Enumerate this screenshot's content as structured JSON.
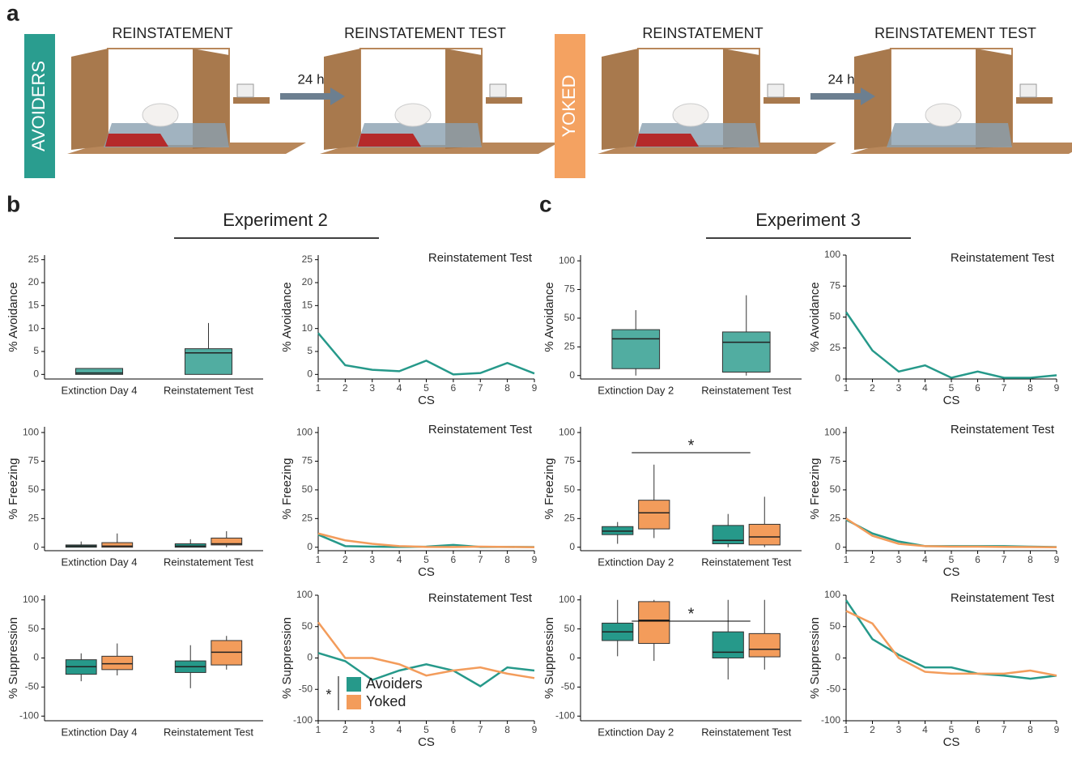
{
  "panel_labels": [
    "a",
    "b",
    "c"
  ],
  "panel_a": {
    "groups": [
      {
        "label": "AVOIDERS",
        "steps": [
          "REINSTATEMENT",
          "REINSTATEMENT TEST"
        ],
        "delay": "24 h"
      },
      {
        "label": "YOKED",
        "steps": [
          "REINSTATEMENT",
          "REINSTATEMENT TEST"
        ],
        "delay": "24 h"
      }
    ]
  },
  "experiments": [
    "Experiment 2",
    "Experiment 3"
  ],
  "chart_data": [
    {
      "type": "box",
      "ylabel": "% Avoidance",
      "categories": [
        "Extinction Day 4",
        "Reinstatement Test"
      ],
      "ylim": [
        -1,
        26
      ],
      "yticks": [
        0,
        5,
        10,
        15,
        20,
        25
      ],
      "series": [
        {
          "color": "#26998a",
          "boxes": [
            {
              "min": 0,
              "q1": 0,
              "median": 0.3,
              "q3": 1.3,
              "max": 1.3
            },
            {
              "min": 0,
              "q1": 0,
              "median": 4.7,
              "q3": 5.6,
              "max": 11.2
            }
          ]
        }
      ]
    },
    {
      "type": "line",
      "title": "Reinstatement Test",
      "xlabel": "CS",
      "ylabel": "% Avoidance",
      "x": [
        1,
        2,
        3,
        4,
        5,
        6,
        7,
        8,
        9
      ],
      "xlim": [
        1,
        9
      ],
      "xticks": [
        1,
        2,
        3,
        4,
        5,
        6,
        7,
        8,
        9
      ],
      "ylim": [
        -1,
        26
      ],
      "yticks": [
        0,
        5,
        10,
        15,
        20,
        25
      ],
      "series": [
        {
          "color": "#26998a",
          "values": [
            9,
            2,
            1,
            0.7,
            3,
            0,
            0.3,
            2.5,
            0.2
          ]
        }
      ]
    },
    {
      "type": "box",
      "ylabel": "% Avoidance",
      "categories": [
        "Extinction Day 2",
        "Reinstatement Test"
      ],
      "ylim": [
        -3,
        105
      ],
      "yticks": [
        0,
        25,
        50,
        75,
        100
      ],
      "series": [
        {
          "color": "#26998a",
          "boxes": [
            {
              "min": 0,
              "q1": 6,
              "median": 32,
              "q3": 40,
              "max": 57
            },
            {
              "min": 0,
              "q1": 3,
              "median": 29,
              "q3": 38,
              "max": 70
            }
          ]
        }
      ]
    },
    {
      "type": "line",
      "title": "Reinstatement Test",
      "xlabel": "CS",
      "ylabel": "% Avoidance",
      "x": [
        1,
        2,
        3,
        4,
        5,
        6,
        7,
        8,
        9
      ],
      "xlim": [
        1,
        9
      ],
      "xticks": [
        1,
        2,
        3,
        4,
        5,
        6,
        7,
        8,
        9
      ],
      "ylim": [
        0,
        100
      ],
      "yticks": [
        0,
        25,
        50,
        75,
        100
      ],
      "series": [
        {
          "color": "#26998a",
          "values": [
            54,
            23,
            6,
            11,
            1,
            6,
            1,
            1,
            3
          ]
        }
      ]
    },
    {
      "type": "box",
      "ylabel": "% Freezing",
      "categories": [
        "Extinction Day 4",
        "Reinstatement Test"
      ],
      "ylim": [
        -3,
        105
      ],
      "yticks": [
        0,
        25,
        50,
        75,
        100
      ],
      "series": [
        {
          "color": "#26998a",
          "boxes": [
            {
              "min": 0,
              "q1": 0,
              "median": 1,
              "q3": 2,
              "max": 5
            },
            {
              "min": 0,
              "q1": 0,
              "median": 1,
              "q3": 3,
              "max": 7
            }
          ]
        },
        {
          "color": "#f39c5b",
          "boxes": [
            {
              "min": 0,
              "q1": 0,
              "median": 1,
              "q3": 4,
              "max": 12
            },
            {
              "min": 0,
              "q1": 2,
              "median": 3,
              "q3": 8,
              "max": 14
            }
          ]
        }
      ]
    },
    {
      "type": "line",
      "title": "Reinstatement Test",
      "xlabel": "CS",
      "ylabel": "% Freezing",
      "x": [
        1,
        2,
        3,
        4,
        5,
        6,
        7,
        8,
        9
      ],
      "xlim": [
        1,
        9
      ],
      "xticks": [
        1,
        2,
        3,
        4,
        5,
        6,
        7,
        8,
        9
      ],
      "ylim": [
        -3,
        105
      ],
      "yticks": [
        0,
        25,
        50,
        75,
        100
      ],
      "series": [
        {
          "color": "#26998a",
          "values": [
            11,
            1,
            0.5,
            0.3,
            0.5,
            2,
            0.3,
            0.3,
            0.2
          ]
        },
        {
          "color": "#f39c5b",
          "values": [
            12,
            6,
            3,
            1,
            0.3,
            0.2,
            0.5,
            0.3,
            0
          ]
        }
      ]
    },
    {
      "type": "box",
      "ylabel": "% Freezing",
      "categories": [
        "Extinction Day 2",
        "Reinstatement Test"
      ],
      "ylim": [
        -3,
        105
      ],
      "yticks": [
        0,
        25,
        50,
        75,
        100
      ],
      "annotation": "*",
      "series": [
        {
          "color": "#26998a",
          "boxes": [
            {
              "min": 3,
              "q1": 11,
              "median": 14,
              "q3": 18,
              "max": 22
            },
            {
              "min": 0,
              "q1": 3,
              "median": 6,
              "q3": 19,
              "max": 29
            }
          ]
        },
        {
          "color": "#f39c5b",
          "boxes": [
            {
              "min": 8,
              "q1": 16,
              "median": 30,
              "q3": 41,
              "max": 72
            },
            {
              "min": 0,
              "q1": 2,
              "median": 9,
              "q3": 20,
              "max": 44
            }
          ]
        }
      ]
    },
    {
      "type": "line",
      "title": "Reinstatement Test",
      "xlabel": "CS",
      "ylabel": "% Freezing",
      "x": [
        1,
        2,
        3,
        4,
        5,
        6,
        7,
        8,
        9
      ],
      "xlim": [
        1,
        9
      ],
      "xticks": [
        1,
        2,
        3,
        4,
        5,
        6,
        7,
        8,
        9
      ],
      "ylim": [
        -3,
        105
      ],
      "yticks": [
        0,
        25,
        50,
        75,
        100
      ],
      "series": [
        {
          "color": "#26998a",
          "values": [
            24,
            12,
            5,
            1,
            1,
            1,
            1,
            0.5,
            0.2
          ]
        },
        {
          "color": "#f39c5b",
          "values": [
            25,
            10,
            3,
            1,
            0.5,
            0.5,
            0.3,
            0.2,
            0
          ]
        }
      ]
    },
    {
      "type": "box",
      "ylabel": "% Suppression",
      "categories": [
        "Extinction Day 4",
        "Reinstatement Test"
      ],
      "ylim": [
        -108,
        108
      ],
      "yticks": [
        -100,
        -50,
        0,
        50,
        100
      ],
      "series": [
        {
          "color": "#26998a",
          "boxes": [
            {
              "min": -40,
              "q1": -28,
              "median": -15,
              "q3": -3,
              "max": 8
            },
            {
              "min": -52,
              "q1": -25,
              "median": -15,
              "q3": -5,
              "max": 22
            }
          ]
        },
        {
          "color": "#f39c5b",
          "boxes": [
            {
              "min": -30,
              "q1": -20,
              "median": -10,
              "q3": 3,
              "max": 25
            },
            {
              "min": -20,
              "q1": -12,
              "median": 10,
              "q3": 30,
              "max": 38
            }
          ]
        }
      ]
    },
    {
      "type": "line",
      "title": "Reinstatement Test",
      "xlabel": "CS",
      "ylabel": "% Suppression",
      "x": [
        1,
        2,
        3,
        4,
        5,
        6,
        7,
        8,
        9
      ],
      "xlim": [
        1,
        9
      ],
      "xticks": [
        1,
        2,
        3,
        4,
        5,
        6,
        7,
        8,
        9
      ],
      "ylim": [
        -100,
        100
      ],
      "yticks": [
        -100,
        -50,
        0,
        50,
        100
      ],
      "legend": "lower-left",
      "annotation": "*",
      "series": [
        {
          "name": "Avoiders",
          "color": "#26998a",
          "values": [
            8,
            -5,
            -35,
            -20,
            -10,
            -20,
            -45,
            -15,
            -20
          ]
        },
        {
          "name": "Yoked",
          "color": "#f39c5b",
          "values": [
            57,
            0,
            0,
            -10,
            -28,
            -20,
            -15,
            -25,
            -32
          ]
        }
      ]
    },
    {
      "type": "box",
      "ylabel": "% Suppression",
      "categories": [
        "Extinction Day 2",
        "Reinstatement Test"
      ],
      "ylim": [
        -108,
        108
      ],
      "yticks": [
        -100,
        -50,
        0,
        50,
        100
      ],
      "annotation": "*",
      "series": [
        {
          "color": "#26998a",
          "boxes": [
            {
              "min": 3,
              "q1": 30,
              "median": 45,
              "q3": 60,
              "max": 100
            },
            {
              "min": -37,
              "q1": 0,
              "median": 10,
              "q3": 45,
              "max": 100
            }
          ]
        },
        {
          "color": "#f39c5b",
          "boxes": [
            {
              "min": -5,
              "q1": 25,
              "median": 65,
              "q3": 97,
              "max": 100
            },
            {
              "min": -20,
              "q1": 2,
              "median": 15,
              "q3": 42,
              "max": 100
            }
          ]
        }
      ]
    },
    {
      "type": "line",
      "title": "Reinstatement Test",
      "xlabel": "CS",
      "ylabel": "% Suppression",
      "x": [
        1,
        2,
        3,
        4,
        5,
        6,
        7,
        8,
        9
      ],
      "xlim": [
        1,
        9
      ],
      "xticks": [
        1,
        2,
        3,
        4,
        5,
        6,
        7,
        8,
        9
      ],
      "ylim": [
        -100,
        100
      ],
      "yticks": [
        -100,
        -50,
        0,
        50,
        100
      ],
      "series": [
        {
          "color": "#26998a",
          "values": [
            92,
            30,
            5,
            -15,
            -15,
            -25,
            -28,
            -33,
            -28
          ]
        },
        {
          "color": "#f39c5b",
          "values": [
            75,
            55,
            0,
            -22,
            -25,
            -25,
            -25,
            -20,
            -28
          ]
        }
      ]
    }
  ]
}
